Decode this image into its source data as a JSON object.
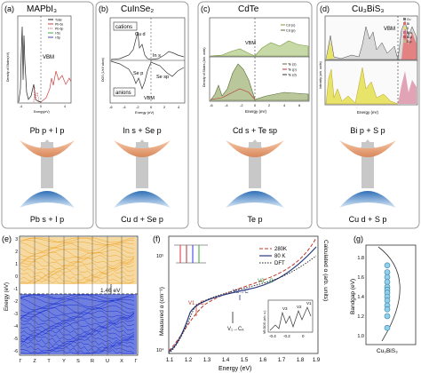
{
  "panels": {
    "a": {
      "letter": "(a)",
      "title": "MAPbI₃",
      "vbm": "VBM",
      "cb_label": "Pb p + I p",
      "vb_label": "Pb s + I p",
      "legend": [
        "Total",
        "Pb-6s",
        "Pb-6p",
        "I-5s",
        "I-5p"
      ],
      "ylabel": "Density of States(eV)",
      "xlabel": "Energy(eV)",
      "xticks": [
        "-4",
        "0",
        "4"
      ]
    },
    "b": {
      "letter": "(b)",
      "title": "CuInSe₂",
      "cb_label": "In s + Se p",
      "vb_label": "Cu d + Se p",
      "box1": "cations",
      "box2": "anions",
      "ann": [
        "Cu d",
        "In s",
        "Se p",
        "Se sp",
        "VBM"
      ],
      "ylabel": "DOS (1/eV atom)",
      "xlabel": "Energy (eV)",
      "xticks": [
        "-6",
        "-4",
        "-2",
        "0",
        "2",
        "4"
      ]
    },
    "c": {
      "letter": "(c)",
      "title": "CdTe",
      "cb_label": "Cd s + Te sp",
      "vb_label": "Te p",
      "vbm": "VBM",
      "legend1": [
        "Cd (s)",
        "Cd (p)"
      ],
      "legend2": [
        "Te (s)",
        "Te (p)",
        "Te (d)"
      ],
      "ylabel": "Density of States (Arb. units)",
      "xlabel": "Energy (eV)",
      "xticks": [
        "-6",
        "-4",
        "-2",
        "0",
        "2",
        "4",
        "6"
      ]
    },
    "d": {
      "letter": "(d)",
      "title": "Cu₃BiS₃",
      "cb_label": "Bi p + S p",
      "vb_label": "Cu d + S p",
      "vbm": "VBM",
      "legend": [
        "Cu",
        "Bi",
        "S",
        "Bi-s",
        "Bi-p",
        "S-p"
      ],
      "ylabel": "Intensity (arb. units)",
      "xlabel": "Energy (eV)"
    },
    "e": {
      "letter": "(e)",
      "ylabel": "Energy (eV)",
      "gap": "1.46 eV",
      "yticks": [
        "3",
        "2",
        "1",
        "0",
        "-1",
        "-2",
        "-3",
        "-4",
        "-5",
        "-6"
      ],
      "kpoints": [
        "Γ",
        "Z",
        "T",
        "Y",
        "S",
        "R",
        "U",
        "X",
        "Γ"
      ]
    },
    "f": {
      "letter": "(f)",
      "ylabel_left": "Measured α (cm⁻¹)",
      "ylabel_right": "Calculated α (arb. units)",
      "xlabel": "Energy (eV)",
      "xticks": [
        "1.1",
        "1.2",
        "1.3",
        "1.4",
        "1.5",
        "1.6",
        "1.7",
        "1.8",
        "1.9"
      ],
      "yticks": [
        "10⁵",
        "10⁴"
      ],
      "legend": [
        "280K",
        "80 K",
        "DFT"
      ],
      "ann": [
        "V1→C",
        "V2→C",
        "V3→C",
        "V₁→Cₓ"
      ],
      "inset_ylabel": "VB DOS (arb. u.)",
      "inset_xticks": [
        "-0.4",
        "-0.2",
        "0"
      ],
      "inset_ann": [
        "V3",
        "V2",
        "V1"
      ],
      "colors": {
        "c280": "#c0392b",
        "c80": "#2a3a80",
        "dft": "#222222"
      }
    },
    "g": {
      "letter": "(g)",
      "ylabel": "Bandgap (eV)",
      "yticks": [
        "1.8",
        "1.6",
        "1.4",
        "1.2",
        "1.0"
      ],
      "xlabel": "Cu₃BiS₃",
      "points": [
        1.72,
        1.65,
        1.6,
        1.55,
        1.5,
        1.47,
        1.44,
        1.4,
        1.36,
        1.31,
        1.27,
        1.2,
        1.08
      ]
    }
  },
  "colors": {
    "cb": "#e89a70",
    "vb": "#9fc8ea",
    "arrow": "#bdbdbd",
    "cond": "#f0a830",
    "val": "#1a2fcf",
    "gpt": "#8fd0ea"
  }
}
